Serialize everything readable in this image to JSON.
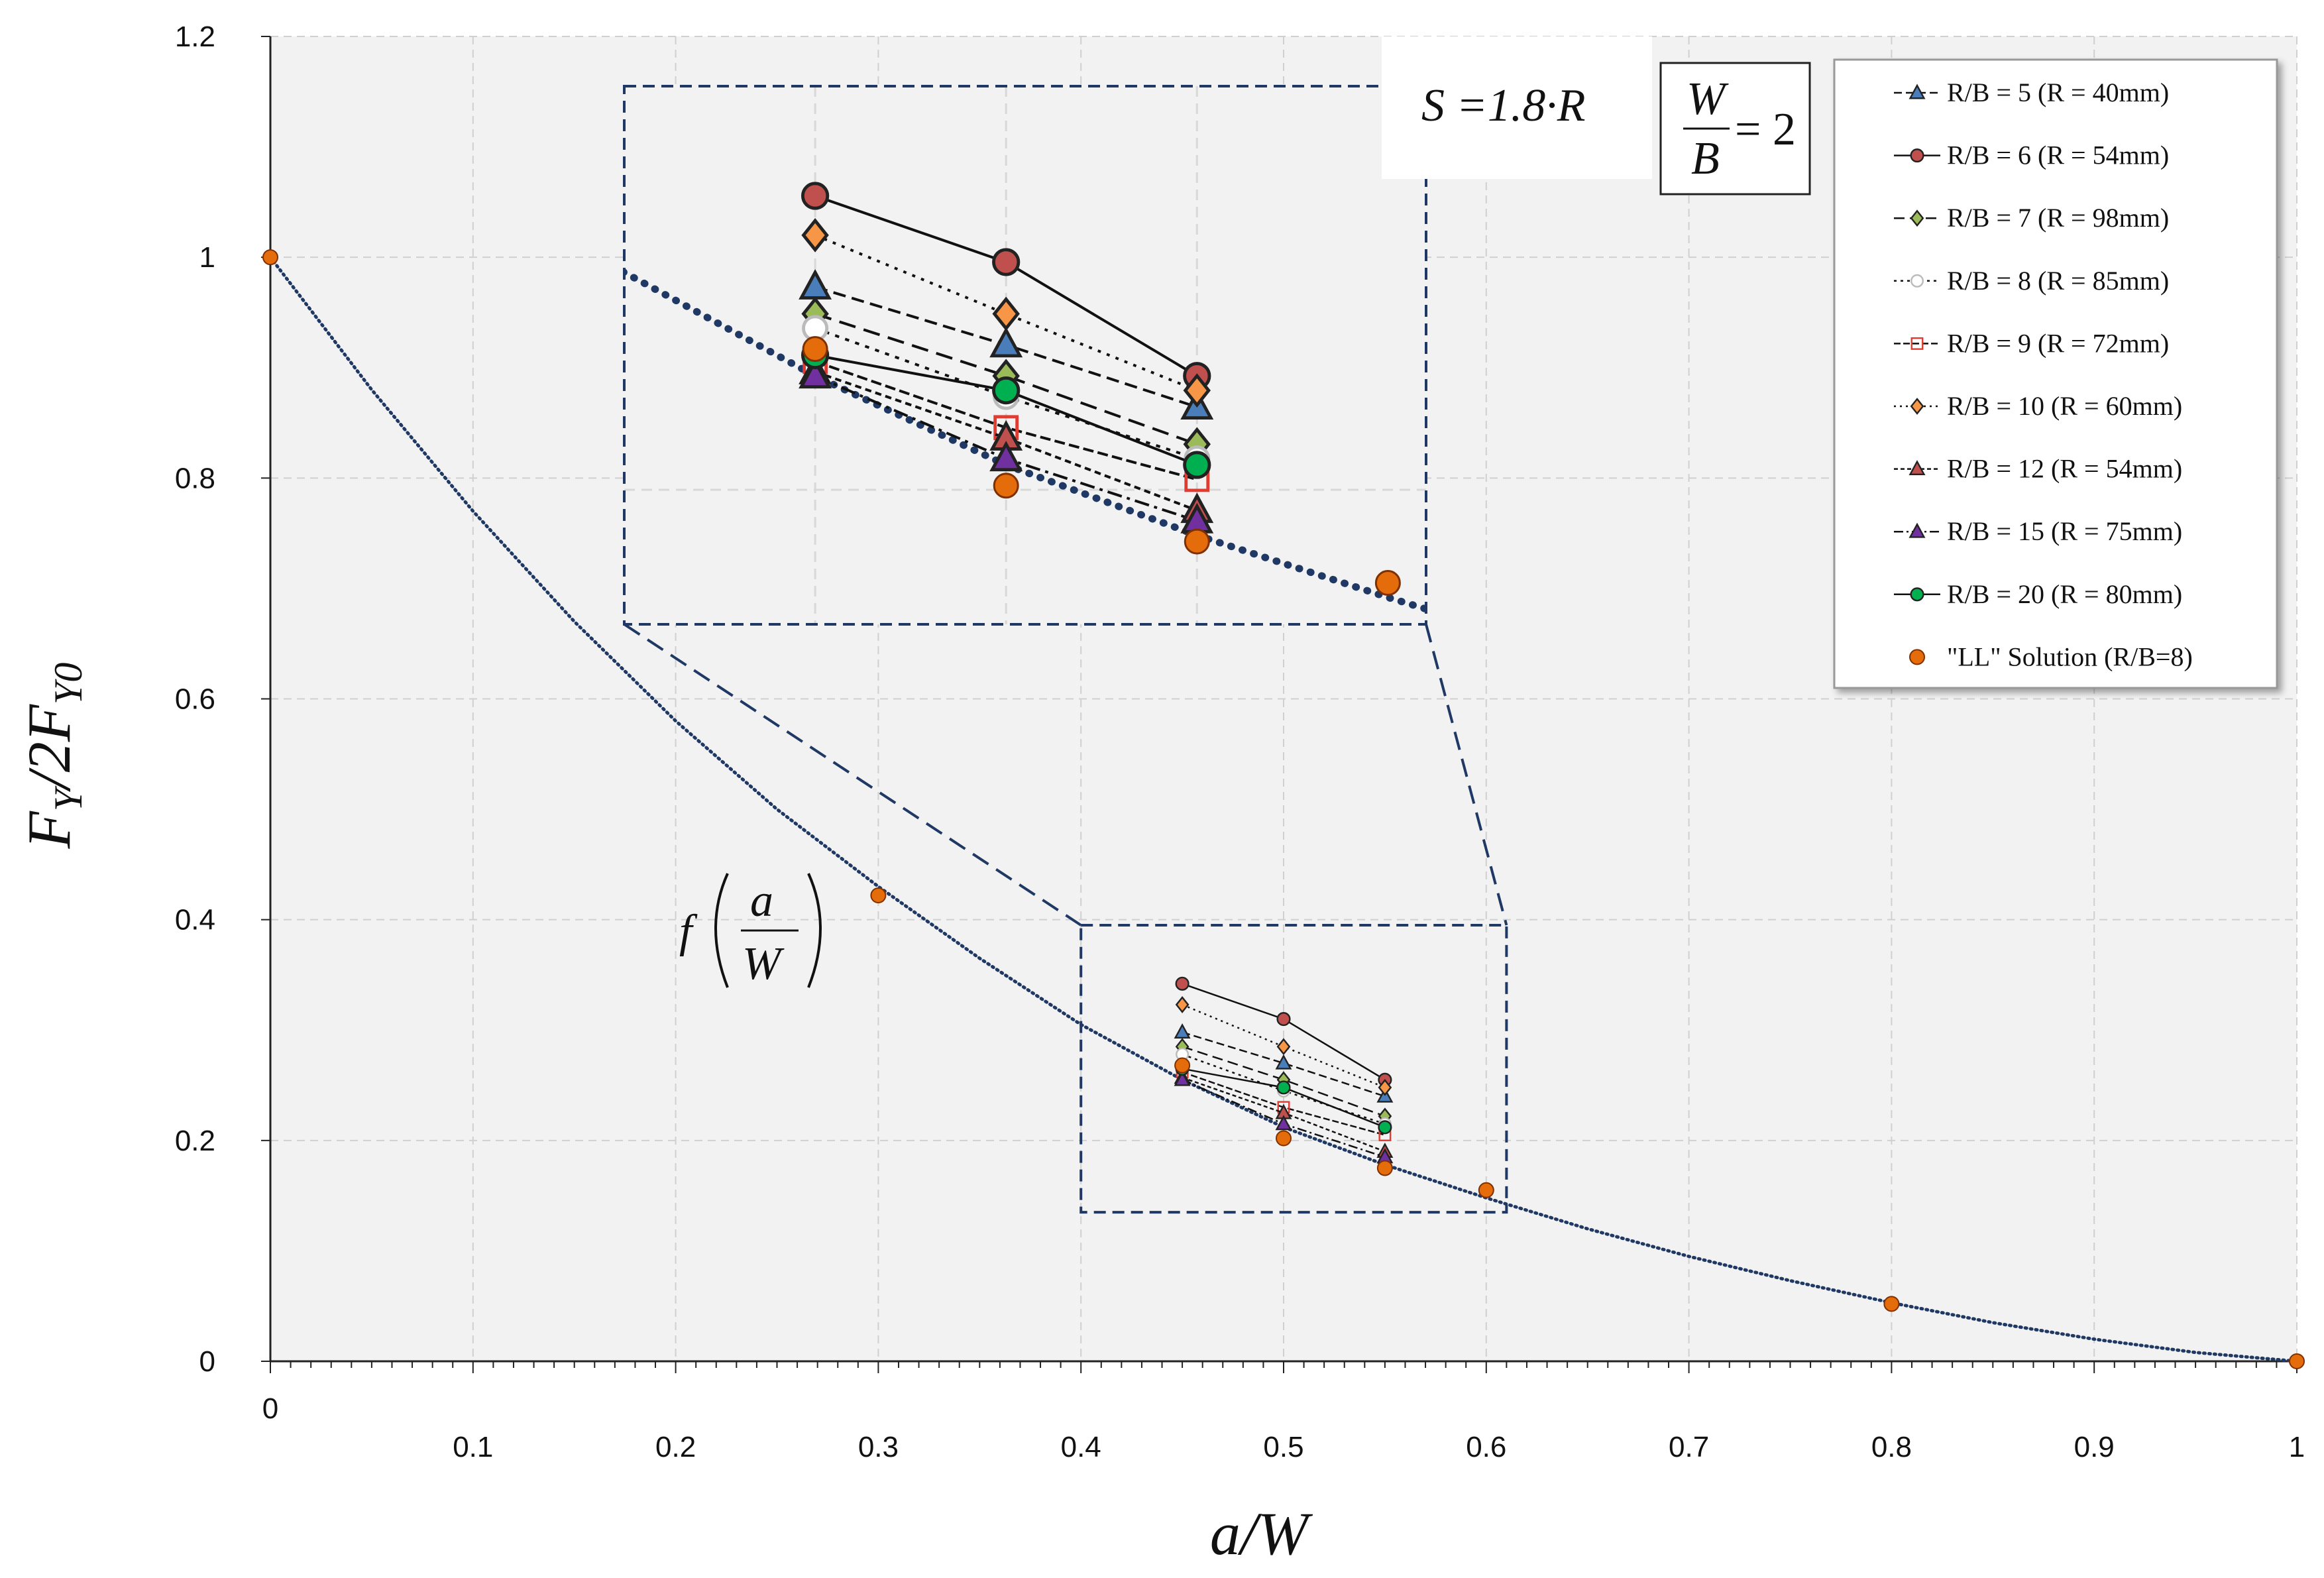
{
  "chart_data": {
    "type": "line",
    "title": "",
    "xlabel": "a/W",
    "ylabel": "F_Y/2F_Y0",
    "xlim": [
      0,
      1
    ],
    "ylim": [
      0,
      1.2
    ],
    "x_ticks": [
      "0",
      "0.1",
      "0.2",
      "0.3",
      "0.4",
      "0.5",
      "0.6",
      "0.7",
      "0.8",
      "0.9",
      "1"
    ],
    "y_ticks": [
      "0",
      "0.2",
      "0.4",
      "0.6",
      "0.8",
      "1",
      "1.2"
    ],
    "grid": true,
    "legend_position": "top-right",
    "series": [
      {
        "name": "R/B = 5 (R = 40mm)",
        "color": "#4a7ebb",
        "marker": "triangle",
        "dash": "12 6",
        "x": [
          0.45,
          0.5,
          0.55
        ],
        "y": [
          0.298,
          0.27,
          0.24
        ]
      },
      {
        "name": "R/B = 6 (R = 54mm)",
        "color": "#c0504d",
        "marker": "circle",
        "dash": "",
        "x": [
          0.45,
          0.5,
          0.55
        ],
        "y": [
          0.342,
          0.31,
          0.255
        ]
      },
      {
        "name": "R/B = 7 (R = 98mm)",
        "color": "#9bbb59",
        "marker": "diamond",
        "dash": "16 8",
        "x": [
          0.45,
          0.5,
          0.55
        ],
        "y": [
          0.285,
          0.255,
          0.222
        ]
      },
      {
        "name": "R/B = 8 (R = 85mm)",
        "color": "#bbbbbb",
        "marker": "open-circle",
        "dash": "4 6",
        "x": [
          0.45,
          0.5,
          0.55
        ],
        "y": [
          0.278,
          0.245,
          0.215
        ]
      },
      {
        "name": "R/B = 9 (R = 72mm)",
        "color": "#e03c31",
        "marker": "open-square",
        "dash": "10 4",
        "x": [
          0.45,
          0.5,
          0.55
        ],
        "y": [
          0.262,
          0.23,
          0.205
        ]
      },
      {
        "name": "R/B = 10 (R = 60mm)",
        "color": "#f79646",
        "marker": "diamond",
        "dash": "3 6",
        "x": [
          0.45,
          0.5,
          0.55
        ],
        "y": [
          0.323,
          0.285,
          0.248
        ]
      },
      {
        "name": "R/B = 12 (R = 54mm)",
        "color": "#c0504d",
        "marker": "triangle",
        "dash": "6 4",
        "x": [
          0.45,
          0.5,
          0.55
        ],
        "y": [
          0.257,
          0.225,
          0.19
        ]
      },
      {
        "name": "R/B = 15 (R = 75mm)",
        "color": "#7030a0",
        "marker": "triangle",
        "dash": "14 5 3 5",
        "x": [
          0.45,
          0.5,
          0.55
        ],
        "y": [
          0.255,
          0.215,
          0.185
        ]
      },
      {
        "name": "R/B = 20 (R = 80mm)",
        "color": "#00b050",
        "marker": "circle",
        "dash": "",
        "x": [
          0.45,
          0.5,
          0.55
        ],
        "y": [
          0.265,
          0.248,
          0.212
        ]
      }
    ],
    "ll_solution": {
      "name": "\"LL\" Solution (R/B=8)",
      "color": "#e46c0a",
      "x": [
        0,
        0.3,
        0.45,
        0.5,
        0.55,
        0.6,
        0.8,
        1.0
      ],
      "y": [
        1.0,
        0.422,
        0.268,
        0.202,
        0.175,
        0.155,
        0.052,
        0.0
      ]
    },
    "f_curve": {
      "x": [
        0,
        0.05,
        0.1,
        0.15,
        0.2,
        0.25,
        0.3,
        0.35,
        0.4,
        0.45,
        0.5,
        0.55,
        0.6,
        0.65,
        0.7,
        0.75,
        0.8,
        0.85,
        0.9,
        0.95,
        1.0
      ],
      "y": [
        1.0,
        0.88,
        0.77,
        0.67,
        0.58,
        0.5,
        0.43,
        0.365,
        0.305,
        0.255,
        0.212,
        0.178,
        0.148,
        0.12,
        0.095,
        0.073,
        0.053,
        0.035,
        0.02,
        0.008,
        0.0
      ]
    },
    "annotations": {
      "s_relation": "S =1.8·R",
      "w_over_b_num": "W",
      "w_over_b_den": "B",
      "w_over_b_value": "= 2",
      "f_label": "f",
      "f_num": "a",
      "f_den": "W"
    },
    "zoom": {
      "x0": 0.4,
      "x1": 0.61,
      "y0": 0.135,
      "y1": 0.395
    }
  }
}
